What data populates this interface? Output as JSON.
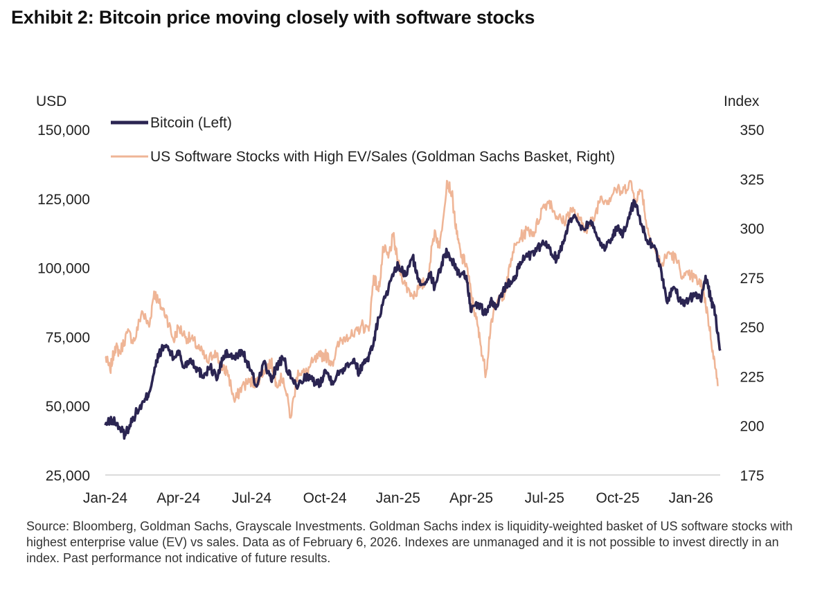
{
  "title": "Exhibit 2: Bitcoin price moving closely with software stocks",
  "source": "Source: Bloomberg, Goldman Sachs, Grayscale Investments. Goldman Sachs index is liquidity-weighted basket of US software stocks with highest enterprise value (EV) vs sales. Data as of February 6, 2026. Indexes are unmanaged and it is not possible to invest directly in an index. Past performance not indicative of future results.",
  "colors": {
    "bitcoin": "#2b2552",
    "software": "#efb596",
    "axis": "#cfcfcf",
    "text": "#222222"
  },
  "chart_data": {
    "type": "line",
    "title": "Exhibit 2: Bitcoin price moving closely with software stocks",
    "ylabel_left": "USD",
    "ylabel_right": "Index",
    "ylim_left": [
      25000,
      150000
    ],
    "ylim_right": [
      175,
      350
    ],
    "yticks_left": [
      25000,
      50000,
      75000,
      100000,
      125000,
      150000
    ],
    "yticks_left_labels": [
      "25,000",
      "50,000",
      "75,000",
      "100,000",
      "125,000",
      "150,000"
    ],
    "yticks_right": [
      175,
      200,
      225,
      250,
      275,
      300,
      325,
      350
    ],
    "yticks_right_labels": [
      "175",
      "200",
      "225",
      "250",
      "275",
      "300",
      "325",
      "350"
    ],
    "xlim_months": [
      0,
      25.2
    ],
    "xticks": [
      0,
      3,
      6,
      9,
      12,
      15,
      18,
      21,
      24
    ],
    "xtick_labels": [
      "Jan-24",
      "Apr-24",
      "Jul-24",
      "Oct-24",
      "Jan-25",
      "Apr-25",
      "Jul-25",
      "Oct-25",
      "Jan-26"
    ],
    "legend_position": "top-left",
    "grid": false,
    "x_unit": "months since Jan 2024",
    "series": [
      {
        "name": "Bitcoin (Left)",
        "axis": "left",
        "x": [
          0.0,
          0.3,
          0.6,
          0.8,
          1.0,
          1.3,
          1.6,
          1.8,
          2.0,
          2.2,
          2.5,
          2.8,
          3.0,
          3.2,
          3.5,
          3.8,
          4.0,
          4.3,
          4.6,
          4.8,
          5.0,
          5.3,
          5.6,
          5.9,
          6.2,
          6.5,
          6.8,
          7.0,
          7.3,
          7.6,
          7.9,
          8.2,
          8.5,
          8.8,
          9.0,
          9.3,
          9.6,
          9.9,
          10.2,
          10.4,
          10.6,
          10.8,
          11.0,
          11.2,
          11.5,
          11.8,
          12.0,
          12.3,
          12.6,
          12.8,
          13.0,
          13.3,
          13.5,
          13.8,
          14.0,
          14.3,
          14.5,
          14.8,
          15.0,
          15.3,
          15.6,
          15.8,
          16.0,
          16.3,
          16.5,
          16.8,
          17.0,
          17.3,
          17.6,
          17.9,
          18.2,
          18.5,
          18.8,
          19.0,
          19.3,
          19.6,
          19.9,
          20.2,
          20.5,
          20.8,
          21.0,
          21.2,
          21.5,
          21.7,
          22.0,
          22.2,
          22.5,
          22.8,
          23.0,
          23.3,
          23.6,
          23.9,
          24.2,
          24.4,
          24.6,
          24.8,
          25.0,
          25.2
        ],
        "values": [
          43000,
          45000,
          42000,
          39500,
          43000,
          48000,
          51500,
          55000,
          62000,
          69000,
          72000,
          67000,
          70000,
          64000,
          67000,
          63000,
          61000,
          64000,
          60000,
          67000,
          69000,
          67000,
          70000,
          64000,
          57000,
          66000,
          59000,
          64000,
          67000,
          60000,
          57000,
          61000,
          59000,
          58000,
          63000,
          59000,
          62000,
          65000,
          67000,
          62000,
          66000,
          68000,
          73000,
          82000,
          90000,
          97000,
          101000,
          97000,
          104000,
          96000,
          94000,
          98000,
          93000,
          102000,
          106000,
          101000,
          98000,
          97000,
          84000,
          87000,
          83000,
          88000,
          85000,
          92000,
          94000,
          97000,
          102000,
          104000,
          105000,
          109000,
          107000,
          103000,
          110000,
          117000,
          118000,
          114000,
          117000,
          110000,
          107000,
          112000,
          115000,
          111000,
          120000,
          124000,
          115000,
          110000,
          108000,
          98000,
          88000,
          93000,
          87000,
          88000,
          91000,
          88000,
          97000,
          89000,
          83000,
          70000
        ]
      },
      {
        "name": "US Software Stocks with High EV/Sales (Goldman Sachs Basket, Right)",
        "axis": "right",
        "x": [
          0.0,
          0.2,
          0.4,
          0.6,
          0.9,
          1.2,
          1.5,
          1.8,
          2.0,
          2.2,
          2.5,
          2.8,
          3.0,
          3.3,
          3.6,
          3.9,
          4.2,
          4.5,
          4.8,
          5.0,
          5.3,
          5.6,
          5.9,
          6.2,
          6.5,
          6.8,
          7.0,
          7.3,
          7.6,
          7.9,
          8.2,
          8.5,
          8.8,
          9.0,
          9.3,
          9.6,
          9.9,
          10.2,
          10.5,
          10.8,
          11.0,
          11.2,
          11.4,
          11.6,
          11.8,
          12.0,
          12.3,
          12.6,
          12.9,
          13.2,
          13.5,
          13.7,
          14.0,
          14.2,
          14.4,
          14.6,
          14.8,
          15.0,
          15.2,
          15.4,
          15.6,
          15.8,
          16.1,
          16.4,
          16.7,
          17.0,
          17.3,
          17.6,
          17.9,
          18.2,
          18.5,
          18.8,
          19.1,
          19.4,
          19.7,
          20.0,
          20.3,
          20.6,
          20.9,
          21.2,
          21.5,
          21.7,
          22.0,
          22.2,
          22.5,
          22.8,
          23.1,
          23.4,
          23.7,
          24.0,
          24.3,
          24.5,
          24.7,
          24.9,
          25.1
        ],
        "values": [
          235,
          228,
          240,
          237,
          247,
          243,
          258,
          250,
          268,
          262,
          256,
          243,
          250,
          245,
          243,
          238,
          232,
          238,
          228,
          228,
          212,
          220,
          222,
          222,
          228,
          232,
          222,
          224,
          204,
          228,
          226,
          232,
          235,
          236,
          232,
          242,
          246,
          245,
          251,
          248,
          276,
          268,
          290,
          285,
          296,
          282,
          271,
          266,
          270,
          274,
          299,
          290,
          324,
          318,
          297,
          285,
          282,
          266,
          254,
          240,
          226,
          252,
          264,
          268,
          288,
          295,
          299,
          298,
          310,
          314,
          306,
          303,
          310,
          304,
          300,
          304,
          316,
          314,
          320,
          318,
          324,
          315,
          319,
          300,
          290,
          281,
          288,
          284,
          275,
          276,
          273,
          269,
          255,
          238,
          220
        ]
      }
    ]
  }
}
